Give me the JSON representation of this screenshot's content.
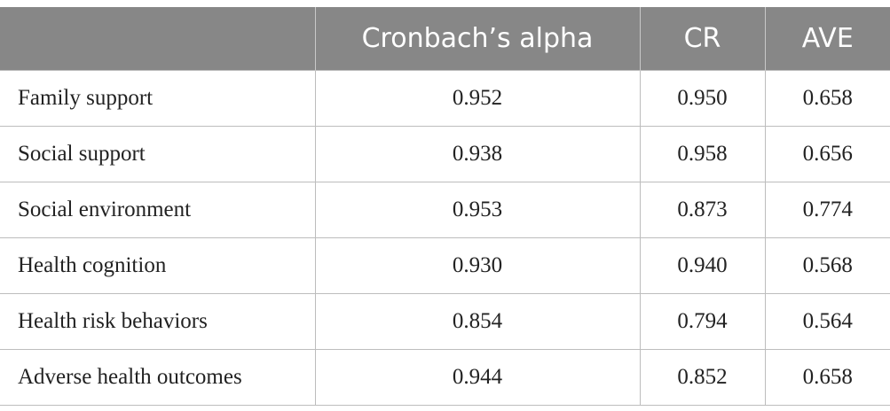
{
  "table": {
    "columns": [
      "Cronbach’s alpha",
      "CR",
      "AVE"
    ],
    "rows": [
      [
        "Family support",
        "0.952",
        "0.950",
        "0.658"
      ],
      [
        "Social support",
        "0.938",
        "0.958",
        "0.656"
      ],
      [
        "Social environment",
        "0.953",
        "0.873",
        "0.774"
      ],
      [
        "Health cognition",
        "0.930",
        "0.940",
        "0.568"
      ],
      [
        "Health risk behaviors",
        "0.854",
        "0.794",
        "0.564"
      ],
      [
        "Adverse health outcomes",
        "0.944",
        "0.852",
        "0.658"
      ]
    ]
  }
}
